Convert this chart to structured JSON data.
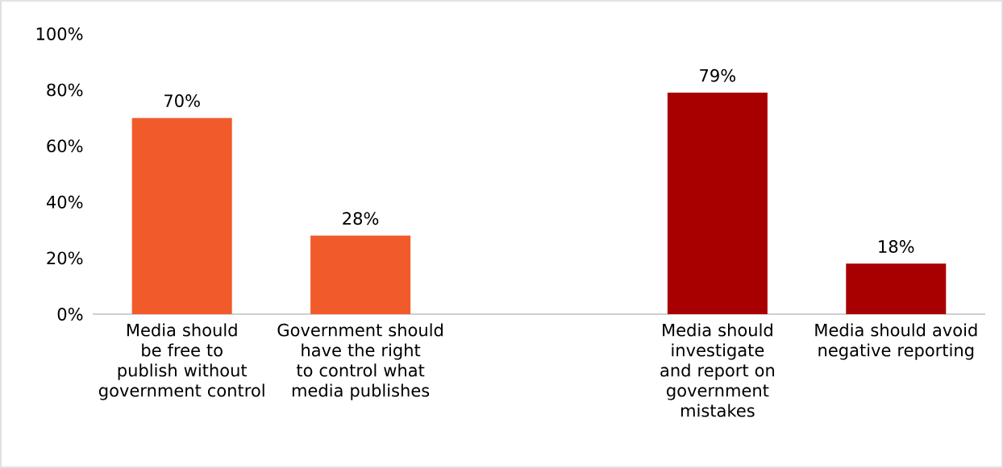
{
  "chart_data": {
    "type": "bar",
    "categories": [
      "Media should be free to publish without government control",
      "Government should have the right to control what media publishes",
      null,
      "Media should investigate and report on government mistakes",
      "Media should avoid negative reporting"
    ],
    "values": [
      70,
      28,
      null,
      79,
      18
    ],
    "colors": [
      "#f15a2b",
      "#f15a2b",
      null,
      "#a80000",
      "#a80000"
    ],
    "value_labels": [
      "70%",
      "28%",
      null,
      "79%",
      "18%"
    ],
    "ylim": [
      0,
      100
    ],
    "yticks": [
      {
        "value": 0,
        "label": "0%"
      },
      {
        "value": 20,
        "label": "20%"
      },
      {
        "value": 40,
        "label": "40%"
      },
      {
        "value": 60,
        "label": "60%"
      },
      {
        "value": 80,
        "label": "80%"
      },
      {
        "value": 100,
        "label": "100%"
      }
    ]
  }
}
